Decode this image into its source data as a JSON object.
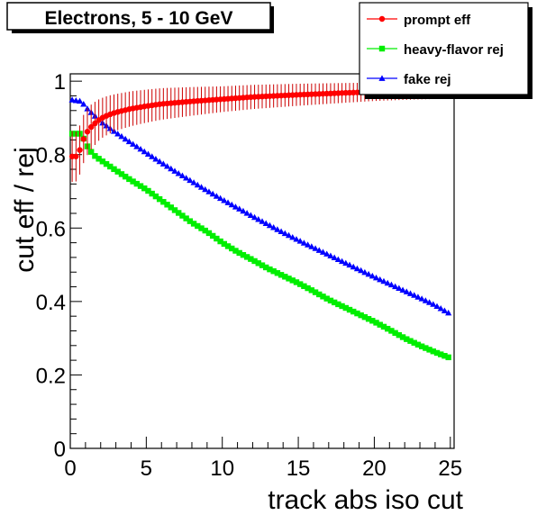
{
  "chart_data": {
    "type": "scatter",
    "title": "Electrons, 5 - 10 GeV",
    "xlabel": "track abs iso cut",
    "ylabel": "cut eff / rej",
    "xlim": [
      0,
      25.25
    ],
    "ylim": [
      0,
      1.02
    ],
    "x_ticks": [
      0,
      5,
      10,
      15,
      20,
      25
    ],
    "y_ticks": [
      0,
      0.2,
      0.4,
      0.6,
      0.8,
      1
    ],
    "x_tick_labels": [
      "0",
      "5",
      "10",
      "15",
      "20",
      "25"
    ],
    "y_tick_labels": [
      "0",
      "0.2",
      "0.4",
      "0.6",
      "0.8",
      "1"
    ],
    "grid": false,
    "legend_position": "top-right",
    "series": [
      {
        "name": "prompt eff",
        "marker": "circle",
        "color": "#ff0000",
        "error_color": "#cc0000",
        "x_start": 0.125,
        "x_step": 0.25,
        "count": 100,
        "curve_x": [
          0,
          0.5,
          0.75,
          1,
          1.25,
          1.5,
          1.75,
          2,
          2.5,
          3,
          4,
          5,
          6,
          8,
          10,
          12,
          15,
          18,
          20,
          22,
          25.25
        ],
        "curve_y": [
          0.795,
          0.795,
          0.83,
          0.855,
          0.87,
          0.88,
          0.89,
          0.898,
          0.908,
          0.915,
          0.925,
          0.932,
          0.938,
          0.945,
          0.951,
          0.957,
          0.963,
          0.968,
          0.971,
          0.973,
          0.975
        ],
        "err_x": [
          0,
          1,
          2,
          3,
          5,
          10,
          15,
          20,
          25.25
        ],
        "err": [
          0.07,
          0.065,
          0.055,
          0.05,
          0.045,
          0.035,
          0.03,
          0.025,
          0.022
        ]
      },
      {
        "name": "heavy-flavor rej",
        "marker": "square",
        "color": "#00ee00",
        "x_start": 0.125,
        "x_step": 0.25,
        "count": 100,
        "curve_x": [
          0,
          0.75,
          1,
          1.25,
          1.5,
          2,
          3,
          4,
          5,
          6,
          7,
          8,
          9,
          10,
          11,
          12,
          13,
          14,
          15,
          16,
          17,
          18,
          19,
          20,
          21,
          22,
          23,
          24,
          25.25
        ],
        "curve_y": [
          0.857,
          0.857,
          0.83,
          0.815,
          0.8,
          0.785,
          0.757,
          0.73,
          0.705,
          0.675,
          0.645,
          0.615,
          0.59,
          0.56,
          0.535,
          0.513,
          0.49,
          0.47,
          0.45,
          0.428,
          0.405,
          0.385,
          0.365,
          0.345,
          0.323,
          0.3,
          0.28,
          0.262,
          0.242
        ]
      },
      {
        "name": "fake rej",
        "marker": "triangle",
        "color": "#0000ff",
        "x_start": 0.125,
        "x_step": 0.25,
        "count": 100,
        "curve_x": [
          0,
          0.75,
          1,
          2,
          3,
          4,
          5,
          6,
          7,
          8,
          9,
          10,
          11,
          12,
          13,
          14,
          15,
          16,
          17,
          18,
          19,
          20,
          21,
          22,
          23,
          24,
          25.25
        ],
        "curve_y": [
          0.95,
          0.945,
          0.93,
          0.89,
          0.86,
          0.832,
          0.805,
          0.778,
          0.752,
          0.727,
          0.702,
          0.678,
          0.655,
          0.632,
          0.61,
          0.588,
          0.567,
          0.547,
          0.527,
          0.507,
          0.487,
          0.467,
          0.448,
          0.429,
          0.41,
          0.39,
          0.36
        ]
      }
    ]
  }
}
